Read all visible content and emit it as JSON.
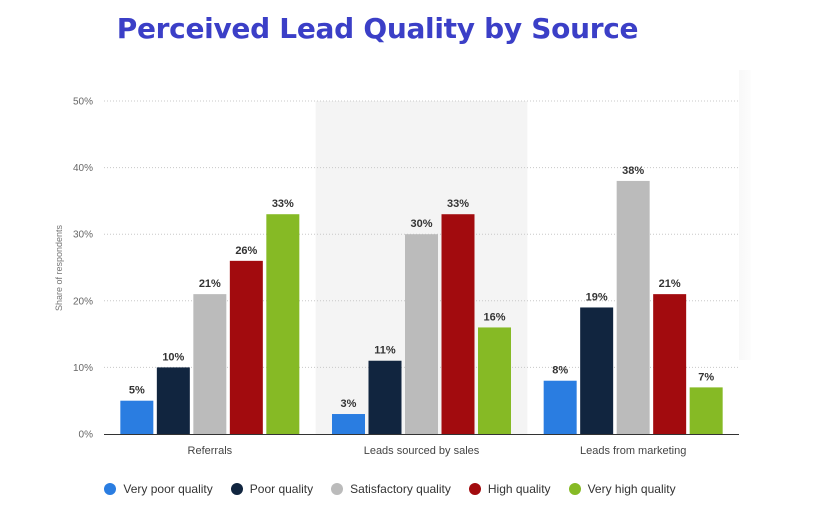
{
  "chart_data": {
    "type": "bar",
    "title": "Perceived Lead Quality by Source",
    "ylabel": "Share of respondents",
    "xlabel": "",
    "categories": [
      "Referrals",
      "Leads sourced by sales",
      "Leads from marketing"
    ],
    "ylim": [
      0,
      50
    ],
    "yticks": [
      0,
      10,
      20,
      30,
      40,
      50
    ],
    "ytick_labels": [
      "0%",
      "10%",
      "20%",
      "30%",
      "40%",
      "50%"
    ],
    "grid": true,
    "highlighted_category": "Leads sourced by sales",
    "legend_position": "bottom",
    "series": [
      {
        "name": "Very poor quality",
        "color": "#2a7de1",
        "values": [
          5,
          3,
          8
        ],
        "labels": [
          "5%",
          "3%",
          "8%"
        ]
      },
      {
        "name": "Poor quality",
        "color": "#11253f",
        "values": [
          10,
          11,
          19
        ],
        "labels": [
          "10%",
          "11%",
          "19%"
        ]
      },
      {
        "name": "Satisfactory quality",
        "color": "#bbbbbb",
        "values": [
          21,
          30,
          38
        ],
        "labels": [
          "21%",
          "30%",
          "38%"
        ]
      },
      {
        "name": "High quality",
        "color": "#a20b0e",
        "values": [
          26,
          33,
          21
        ],
        "labels": [
          "26%",
          "33%",
          "21%"
        ]
      },
      {
        "name": "Very high quality",
        "color": "#86ba25",
        "values": [
          33,
          16,
          7
        ],
        "labels": [
          "33%",
          "16%",
          "7%"
        ]
      }
    ]
  }
}
